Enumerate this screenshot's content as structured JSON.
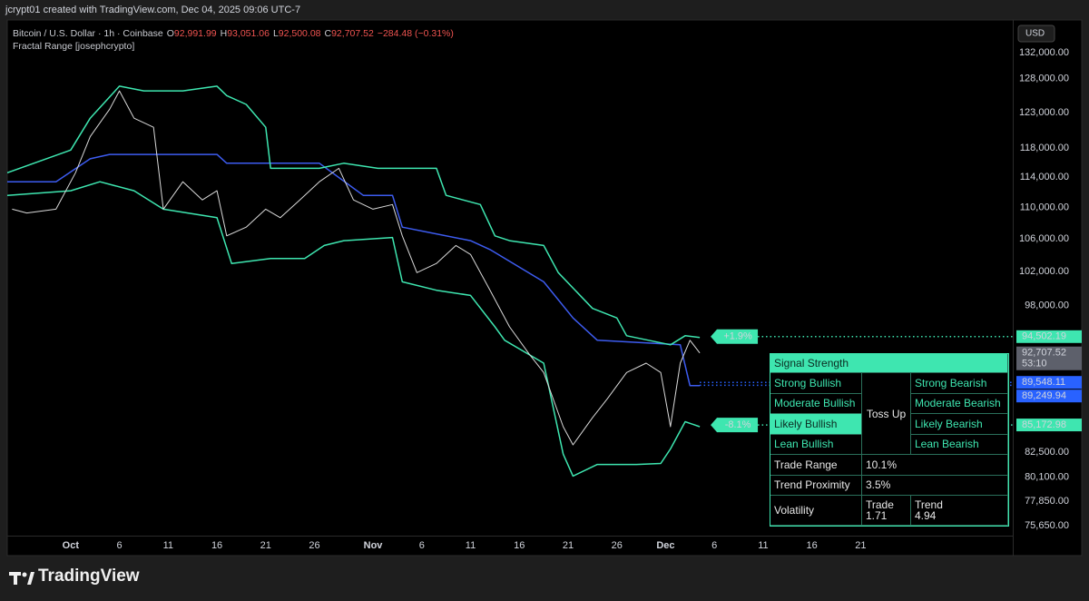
{
  "header": {
    "title": "jcrypt01 created with TradingView.com, Dec 04, 2025 09:06 UTC-7"
  },
  "legend": {
    "symbol": "Bitcoin / U.S. Dollar · 1h · Coinbase",
    "ohlc": [
      {
        "key": "O",
        "value": "92,991.99"
      },
      {
        "key": "H",
        "value": "93,051.06"
      },
      {
        "key": "L",
        "value": "92,500.08"
      },
      {
        "key": "C",
        "value": "92,707.52"
      }
    ],
    "change": "−284.48 (−0.31%)",
    "indicator": "Fractal Range [josephcrypto]"
  },
  "chart_data": {
    "type": "line",
    "currency": "USD",
    "log_scale": true,
    "grid": false,
    "xlim": [
      -6.5,
      96.5
    ],
    "ylim": [
      74770,
      137180
    ],
    "xticks": [
      {
        "value": 0,
        "label": "Oct"
      },
      {
        "value": 5,
        "label": "6"
      },
      {
        "value": 10,
        "label": "11"
      },
      {
        "value": 15,
        "label": "16"
      },
      {
        "value": 20,
        "label": "21"
      },
      {
        "value": 25,
        "label": "26"
      },
      {
        "value": 31,
        "label": "Nov"
      },
      {
        "value": 36,
        "label": "6"
      },
      {
        "value": 41,
        "label": "11"
      },
      {
        "value": 46,
        "label": "16"
      },
      {
        "value": 51,
        "label": "21"
      },
      {
        "value": 56,
        "label": "26"
      },
      {
        "value": 61,
        "label": "Dec"
      },
      {
        "value": 66,
        "label": "6"
      },
      {
        "value": 71,
        "label": "11"
      },
      {
        "value": 76,
        "label": "16"
      },
      {
        "value": 81,
        "label": "21"
      }
    ],
    "yticks": [
      {
        "value": 132000,
        "label": "132,000.00"
      },
      {
        "value": 128000,
        "label": "128,000.00"
      },
      {
        "value": 123000,
        "label": "123,000.00"
      },
      {
        "value": 118000,
        "label": "118,000.00"
      },
      {
        "value": 114000,
        "label": "114,000.00"
      },
      {
        "value": 110000,
        "label": "110,000.00"
      },
      {
        "value": 106000,
        "label": "106,000.00"
      },
      {
        "value": 102000,
        "label": "102,000.00"
      },
      {
        "value": 98000,
        "label": "98,000.00"
      },
      {
        "value": 82500,
        "label": "82,500.00"
      },
      {
        "value": 80100,
        "label": "80,100.00"
      },
      {
        "value": 77850,
        "label": "77,850.00"
      },
      {
        "value": 75650,
        "label": "75,650.00"
      }
    ],
    "series": [
      {
        "color": "#3d5cf0",
        "width": 1.5,
        "x": [
          -6.5,
          -1.5,
          2,
          4,
          15,
          16,
          25.5,
          30,
          33,
          34,
          41,
          43,
          48.5,
          51.5,
          54,
          62.5,
          63.5,
          64.5
        ],
        "values": [
          113400,
          113400,
          116500,
          117100,
          117100,
          115900,
          115900,
          111600,
          111600,
          107500,
          105800,
          104700,
          100800,
          96600,
          94100,
          93600,
          89200,
          89200
        ]
      },
      {
        "color": "#3ee6b0",
        "width": 1.5,
        "x": [
          -6.5,
          0,
          2,
          5,
          7.5,
          11.5,
          15,
          16,
          18,
          20,
          20.5,
          25.5,
          28,
          31.5,
          37.5,
          38.5,
          42,
          43.5,
          45,
          48.5,
          50,
          53.5,
          56,
          57,
          61.5,
          63,
          64.5
        ],
        "values": [
          114600,
          117700,
          122200,
          126900,
          126200,
          126200,
          126900,
          125500,
          124200,
          120900,
          115200,
          115200,
          115900,
          115200,
          115200,
          111600,
          110400,
          106400,
          105800,
          105200,
          101900,
          97700,
          96600,
          94600,
          93600,
          94600,
          94400
        ]
      },
      {
        "color": "#3ee6b0",
        "width": 1.5,
        "x": [
          -6.5,
          0,
          3,
          6.5,
          9.5,
          15,
          16.5,
          20.5,
          24,
          26,
          28,
          33,
          34,
          37.5,
          41,
          43.5,
          44.5,
          48.5,
          50.5,
          51.5,
          54,
          58,
          60.5,
          61.5,
          63,
          64.5
        ],
        "values": [
          111600,
          112200,
          113400,
          112200,
          109800,
          108700,
          103000,
          103600,
          103600,
          105200,
          105800,
          106200,
          100800,
          99800,
          99200,
          95600,
          94100,
          91600,
          82300,
          80200,
          81300,
          81300,
          81400,
          82800,
          85500,
          85000
        ]
      },
      {
        "color": "#d9d9d9",
        "width": 1,
        "x": [
          -6,
          -4.5,
          -1.5,
          0.5,
          2,
          4,
          5,
          6.5,
          8.5,
          9.5,
          11.5,
          13.5,
          15,
          16,
          18,
          20,
          21.5,
          23.5,
          25.5,
          27.5,
          29,
          31,
          33,
          34,
          35.5,
          37.5,
          39.5,
          41,
          43,
          45,
          47,
          48.5,
          50.5,
          51.5,
          53.5,
          55,
          57,
          59,
          60.5,
          61.5,
          62.5,
          63.5,
          64.5
        ],
        "values": [
          109800,
          109300,
          109800,
          114600,
          119600,
          123500,
          126200,
          122200,
          120900,
          109800,
          113400,
          111000,
          112200,
          106400,
          107500,
          109800,
          108700,
          111000,
          113400,
          115200,
          111000,
          109800,
          110400,
          106400,
          101900,
          103000,
          105200,
          104100,
          99800,
          95600,
          92600,
          90600,
          85000,
          83200,
          85900,
          87800,
          90600,
          91600,
          90600,
          85000,
          91600,
          94100,
          92700
        ]
      }
    ],
    "price_labels": [
      {
        "value": 94502.19,
        "label": "94,502.19",
        "color": "#3ee6b0",
        "note": "+1.9%"
      },
      {
        "value": 92707.52,
        "label": "92,707.52",
        "sub": "53:10",
        "color": "#5d606b"
      },
      {
        "value": 89548.11,
        "label": "89,548.11",
        "color": "#2962ff"
      },
      {
        "value": 89249.94,
        "label": "89,249.94",
        "color": "#2962ff"
      },
      {
        "value": 85172.98,
        "label": "85,172.98",
        "color": "#3ee6b0",
        "note": "-8.1%"
      }
    ]
  },
  "signal_table": {
    "title": "Signal Strength",
    "bullish": [
      "Strong Bullish",
      "Moderate Bullish",
      "Likely Bullish",
      "Lean Bullish"
    ],
    "neutral": "Toss Up",
    "bearish": [
      "Strong Bearish",
      "Moderate Bearish",
      "Likely Bearish",
      "Lean Bearish"
    ],
    "active_bullish": 2,
    "trade_range": {
      "label": "Trade Range",
      "value": "10.1%"
    },
    "trend_proximity": {
      "label": "Trend Proximity",
      "value": "3.5%"
    },
    "volatility": {
      "label": "Volatility",
      "trade_label": "Trade",
      "trade_value": "1.71",
      "trend_label": "Trend",
      "trend_value": "4.94"
    }
  },
  "footer": {
    "brand": "TradingView"
  }
}
